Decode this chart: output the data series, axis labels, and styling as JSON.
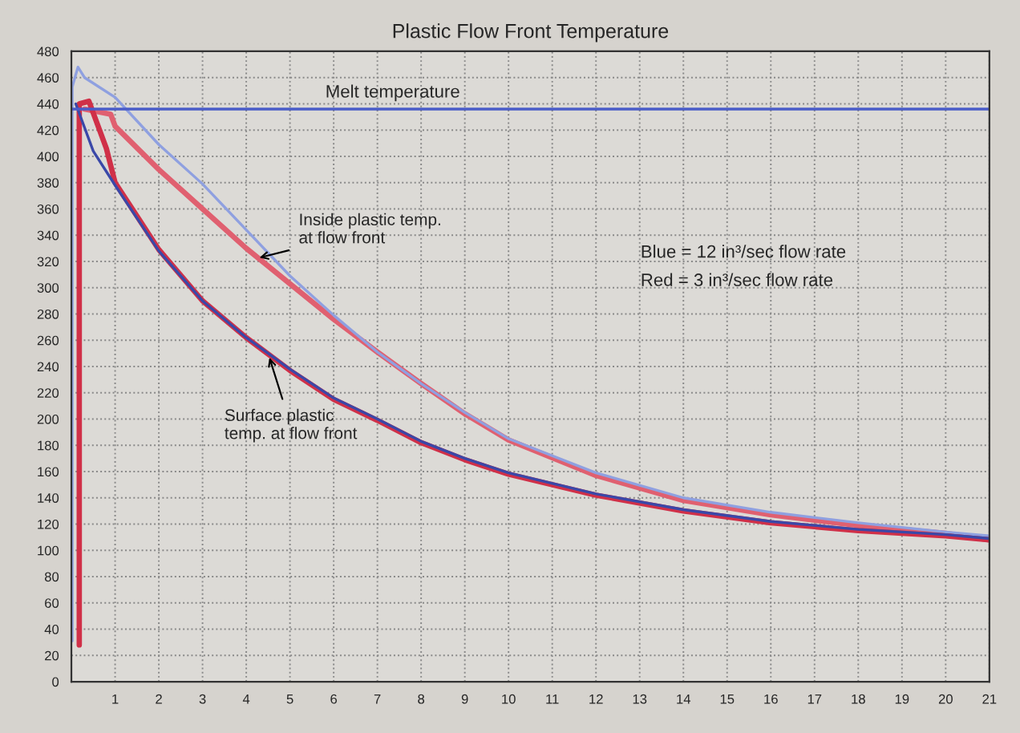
{
  "chart_data": {
    "type": "line",
    "title": "Plastic Flow Front Temperature",
    "xlim": [
      0,
      21
    ],
    "xticks": [
      1,
      2,
      3,
      4,
      5,
      6,
      7,
      8,
      9,
      10,
      11,
      12,
      13,
      14,
      15,
      16,
      17,
      18,
      19,
      20,
      21
    ],
    "ylim": [
      0,
      480
    ],
    "yticks": [
      0,
      20,
      40,
      60,
      80,
      100,
      120,
      140,
      160,
      180,
      200,
      220,
      240,
      260,
      280,
      300,
      320,
      340,
      360,
      380,
      400,
      420,
      440,
      460,
      480
    ],
    "grid": true,
    "line_style": "solid",
    "marker": "none",
    "ref_lines": [
      {
        "axis": "y",
        "value": 436,
        "label": "Melt temperature",
        "color": "#4a5cc8"
      }
    ],
    "series": [
      {
        "color": "#e06070",
        "x": [
          0.3,
          0.9,
          1,
          2,
          3,
          4,
          5,
          6,
          7,
          8,
          9,
          10,
          12,
          14,
          16,
          18,
          20,
          21
        ],
        "values": [
          436,
          432,
          423,
          390,
          360,
          330,
          303,
          276,
          251,
          227,
          204,
          184,
          157,
          138,
          127,
          119,
          113,
          108
        ]
      },
      {
        "color": "#8fa0e0",
        "x": [
          0.02,
          0.02,
          0.15,
          0.3,
          1,
          2,
          3,
          4,
          5,
          6,
          7,
          8,
          9,
          10,
          12,
          14,
          16,
          18,
          20,
          21
        ],
        "values": [
          31,
          453,
          468,
          460,
          445,
          409,
          379,
          344,
          309,
          279,
          251,
          227,
          205,
          185,
          159,
          140,
          129,
          121,
          114,
          111
        ]
      },
      {
        "color": "#d03048",
        "x": [
          0.18,
          0.18,
          0.4,
          0.8,
          1,
          2,
          3,
          4,
          5,
          6,
          7,
          8,
          9,
          10,
          12,
          14,
          16,
          18,
          20,
          21
        ],
        "values": [
          28,
          440,
          442,
          406,
          380,
          329,
          290,
          262,
          237,
          215,
          199,
          182,
          169,
          158,
          142,
          130,
          121,
          115,
          111,
          108
        ]
      },
      {
        "color": "#3a48a8",
        "x": [
          0.1,
          0.5,
          1,
          2,
          3,
          4,
          5,
          6,
          7,
          8,
          9,
          10,
          12,
          14,
          16,
          18,
          20,
          21
        ],
        "values": [
          440,
          404,
          378,
          328,
          290,
          262,
          238,
          216,
          200,
          183,
          170,
          159,
          143,
          131,
          122,
          116,
          112,
          109
        ]
      }
    ],
    "annotations": [
      {
        "text": "Inside plastic temp.\nat flow front",
        "x": 4.2,
        "y": 322
      },
      {
        "text": "Surface plastic\ntemp. at flow front",
        "x": 4.5,
        "y": 250
      },
      "Blue = 12 in³/sec flow rate",
      "Red = 3 in³/sec flow rate"
    ]
  }
}
